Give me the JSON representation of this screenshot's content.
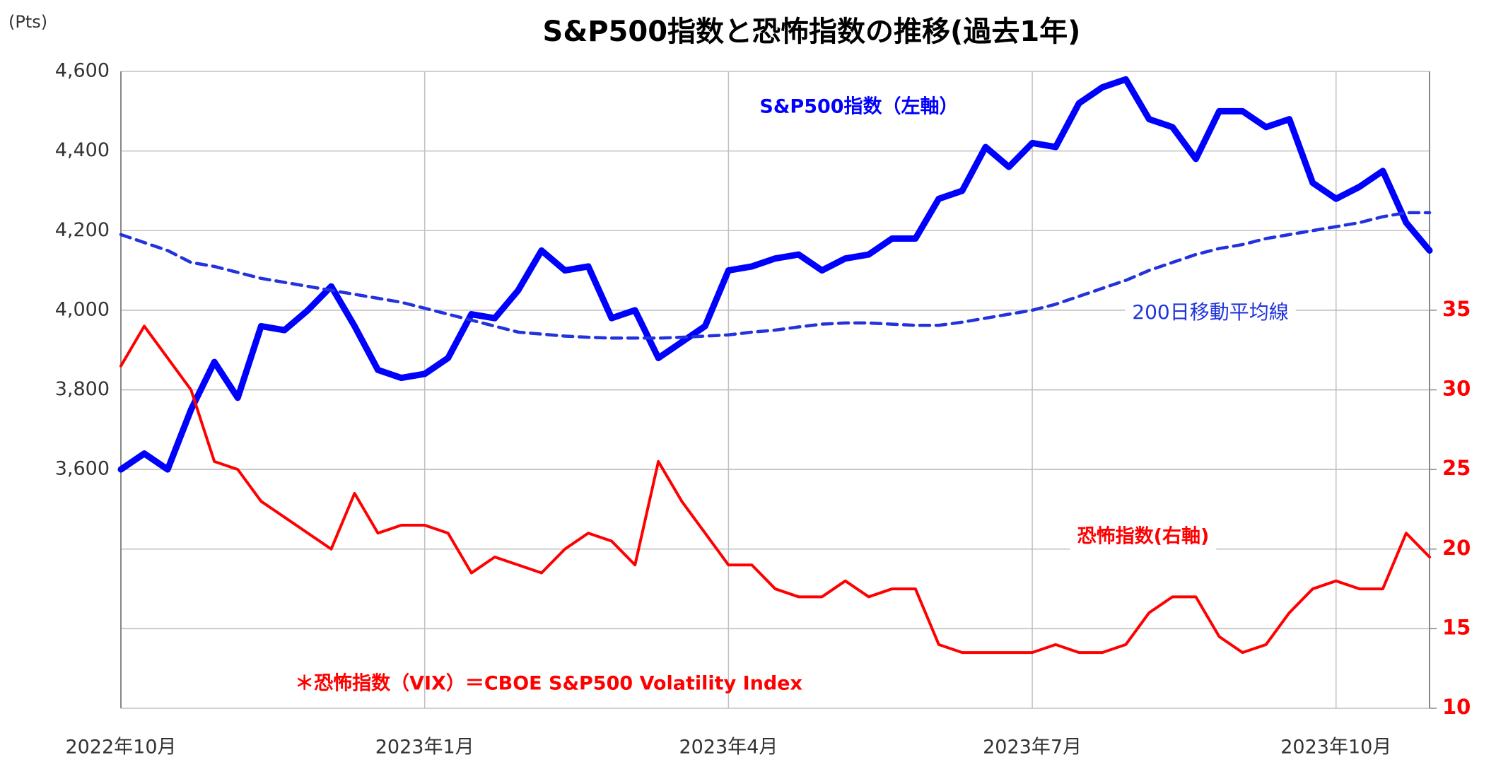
{
  "chart_data": {
    "type": "line",
    "title": "S&P500指数と恐怖指数の推移(過去1年)",
    "y_unit": "(Pts)",
    "categories": [
      "2022年10月",
      null,
      null,
      null,
      null,
      null,
      null,
      null,
      null,
      null,
      null,
      null,
      null,
      "2023年1月",
      null,
      null,
      null,
      null,
      null,
      null,
      null,
      null,
      null,
      null,
      null,
      null,
      "2023年4月",
      null,
      null,
      null,
      null,
      null,
      null,
      null,
      null,
      null,
      null,
      null,
      null,
      "2023年7月",
      null,
      null,
      null,
      null,
      null,
      null,
      null,
      null,
      null,
      null,
      null,
      null,
      "2023年10月",
      null,
      null,
      null,
      null
    ],
    "ylim": [
      3000,
      4600
    ],
    "yticks": [
      {
        "value": 3600,
        "label": "3,600"
      },
      {
        "value": 3800,
        "label": "3,800"
      },
      {
        "value": 4000,
        "label": "4,000"
      },
      {
        "value": 4200,
        "label": "4,200"
      },
      {
        "value": 4400,
        "label": "4,400"
      },
      {
        "value": 4600,
        "label": "4,600"
      }
    ],
    "y2lim": [
      10,
      50
    ],
    "y2ticks": [
      10,
      15,
      20,
      25,
      30,
      35
    ],
    "grid": true,
    "series": [
      {
        "name": "S&P500指数（左軸）",
        "color": "#0000ff",
        "values": [
          3600,
          3640,
          3600,
          3750,
          3870,
          3780,
          3960,
          3950,
          4000,
          4060,
          3960,
          3850,
          3830,
          3840,
          3880,
          3990,
          3980,
          4050,
          4150,
          4100,
          4110,
          3980,
          4000,
          3880,
          3920,
          3960,
          4100,
          4110,
          4130,
          4140,
          4100,
          4130,
          4140,
          4180,
          4180,
          4280,
          4300,
          4410,
          4360,
          4420,
          4410,
          4520,
          4560,
          4580,
          4480,
          4460,
          4380,
          4500,
          4500,
          4460,
          4480,
          4320,
          4280,
          4310,
          4350,
          4220,
          4150
        ]
      },
      {
        "name": "200日移動平均線",
        "color": "#2233dd",
        "dashed": true,
        "values": [
          4190,
          4170,
          4150,
          4120,
          4110,
          4095,
          4080,
          4070,
          4060,
          4050,
          4040,
          4030,
          4020,
          4005,
          3990,
          3975,
          3960,
          3945,
          3940,
          3935,
          3932,
          3930,
          3930,
          3930,
          3932,
          3935,
          3938,
          3945,
          3950,
          3958,
          3965,
          3968,
          3968,
          3965,
          3962,
          3962,
          3970,
          3980,
          3990,
          4000,
          4015,
          4035,
          4055,
          4075,
          4100,
          4120,
          4140,
          4155,
          4165,
          4180,
          4190,
          4200,
          4210,
          4220,
          4235,
          4245,
          4245
        ]
      },
      {
        "name": "恐怖指数(右軸)",
        "color": "#ff0000",
        "axis": "y2",
        "values": [
          31.5,
          34,
          32,
          30,
          25.5,
          25,
          23,
          22,
          21,
          20,
          23.5,
          21,
          21.5,
          21.5,
          21,
          18.5,
          19.5,
          19,
          18.5,
          20,
          21,
          20.5,
          19,
          25.5,
          23,
          21,
          19,
          19,
          17.5,
          17,
          17,
          18,
          17,
          17.5,
          17.5,
          14,
          13.5,
          13.5,
          13.5,
          13.5,
          14,
          13.5,
          13.5,
          14,
          16,
          17,
          17,
          14.5,
          13.5,
          14,
          16,
          17.5,
          18,
          17.5,
          17.5,
          21,
          19.5
        ]
      }
    ],
    "note": "＊恐怖指数（VIX）＝CBOE S&P500 Volatility Index"
  }
}
